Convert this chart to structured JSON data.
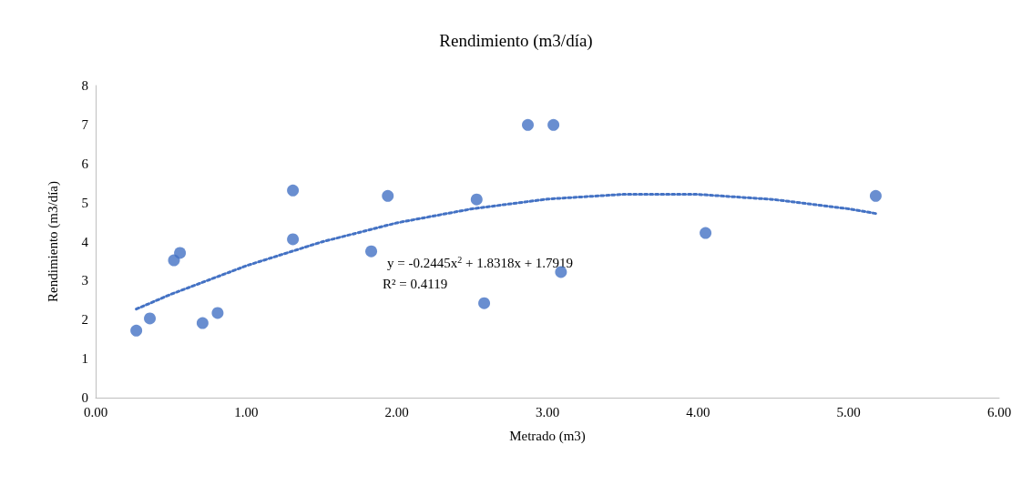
{
  "chart_data": {
    "type": "scatter",
    "title": "Rendimiento (m3/día)",
    "xlabel": "Metrado (m3)",
    "ylabel": "Rendimiento (m3/día)",
    "xlim": [
      0,
      6
    ],
    "xticks": [
      {
        "value": 0,
        "label": "0.00"
      },
      {
        "value": 1,
        "label": "1.00"
      },
      {
        "value": 2,
        "label": "2.00"
      },
      {
        "value": 3,
        "label": "3.00"
      },
      {
        "value": 4,
        "label": "4.00"
      },
      {
        "value": 5,
        "label": "5.00"
      },
      {
        "value": 6,
        "label": "6.00"
      }
    ],
    "ylim": [
      0,
      8
    ],
    "yticks": [
      0,
      1,
      2,
      3,
      4,
      5,
      6,
      7,
      8
    ],
    "grid": false,
    "marker": "circle",
    "annotations": [
      "y = -0.2445x$^{2}$ + 1.8318x + 1.7919",
      "R² = 0.4119"
    ],
    "series": [
      {
        "type": "scatter",
        "color": "#4472c4",
        "x": [
          0.27,
          0.36,
          0.52,
          0.56,
          0.71,
          0.81,
          1.31,
          1.31,
          1.83,
          1.94,
          2.53,
          2.58,
          2.87,
          3.04,
          3.09,
          4.05,
          5.18
        ],
        "values": [
          1.72,
          2.03,
          3.52,
          3.71,
          1.91,
          2.17,
          5.31,
          4.06,
          3.75,
          5.17,
          5.08,
          2.42,
          6.99,
          6.99,
          3.22,
          4.22,
          5.17
        ]
      },
      {
        "type": "line",
        "color": "#4472c4",
        "line_style": "dotted",
        "marker": "none",
        "x": [
          0.27,
          0.5,
          1,
          1.5,
          2,
          2.5,
          3,
          3.5,
          4,
          4.5,
          5,
          5.18
        ],
        "values": [
          2.27,
          2.65,
          3.38,
          3.99,
          4.48,
          4.84,
          5.09,
          5.21,
          5.21,
          5.08,
          4.84,
          4.72
        ]
      }
    ]
  }
}
